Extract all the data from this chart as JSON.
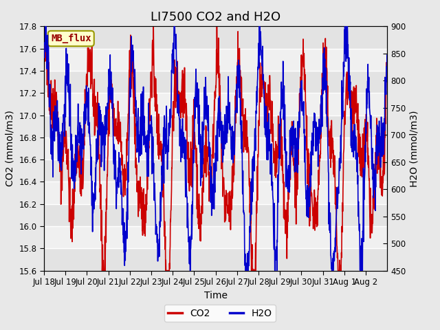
{
  "title": "LI7500 CO2 and H2O",
  "xlabel": "Time",
  "ylabel_left": "CO2 (mmol/m3)",
  "ylabel_right": "H2O (mmol/m3)",
  "ylim_left": [
    15.6,
    17.8
  ],
  "ylim_right": [
    450,
    900
  ],
  "yticks_left": [
    15.6,
    15.8,
    16.0,
    16.2,
    16.4,
    16.6,
    16.8,
    17.0,
    17.2,
    17.4,
    17.6,
    17.8
  ],
  "yticks_right": [
    450,
    500,
    550,
    600,
    650,
    700,
    750,
    800,
    850,
    900
  ],
  "xtick_labels": [
    "Jul 18",
    "Jul 19",
    "Jul 20",
    "Jul 21",
    "Jul 22",
    "Jul 23",
    "Jul 24",
    "Jul 25",
    "Jul 26",
    "Jul 27",
    "Jul 28",
    "Jul 29",
    "Jul 30",
    "Jul 31",
    "Aug 1",
    "Aug 2"
  ],
  "label_box_text": "MB_flux",
  "label_box_facecolor": "#ffffcc",
  "label_box_edgecolor": "#999900",
  "co2_color": "#cc0000",
  "h2o_color": "#0000cc",
  "background_color": "#e8e8e8",
  "plot_bg_color": "#f0f0f0",
  "grid_color": "#ffffff",
  "title_fontsize": 13,
  "axis_fontsize": 10,
  "tick_fontsize": 8.5,
  "line_width": 1.2,
  "n_points": 1500,
  "seed": 42
}
